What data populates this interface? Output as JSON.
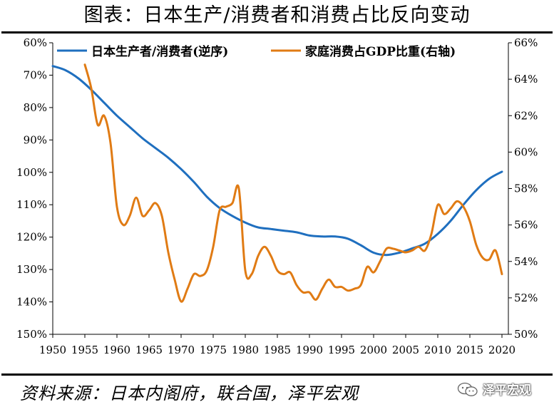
{
  "header": {
    "title": "图表：日本生产/消费者和消费占比反向变动"
  },
  "footer": {
    "source": "资料来源：日本内阁府，联合国，泽平宏观",
    "watermark": "泽平宏观"
  },
  "chart_data": {
    "type": "line",
    "title": "图表：日本生产/消费者和消费占比反向变动",
    "x_ticks": [
      1950,
      1955,
      1960,
      1965,
      1970,
      1975,
      1980,
      1985,
      1990,
      1995,
      2000,
      2005,
      2010,
      2015,
      2020
    ],
    "x_range": [
      1950,
      2021
    ],
    "left_axis": {
      "ticks": [
        "60%",
        "70%",
        "80%",
        "90%",
        "100%",
        "110%",
        "120%",
        "130%",
        "140%",
        "150%"
      ],
      "range": [
        60,
        150
      ],
      "inverted": true
    },
    "right_axis": {
      "ticks": [
        "66%",
        "64%",
        "62%",
        "60%",
        "58%",
        "56%",
        "54%",
        "52%",
        "50%"
      ],
      "range": [
        50,
        66
      ]
    },
    "grid": false,
    "legend_position": "top",
    "series": [
      {
        "name": "日本生产者/消费者(逆序)",
        "axis": "left",
        "color": "#1f6fbf",
        "points": [
          [
            1950,
            67.2
          ],
          [
            1952,
            68.5
          ],
          [
            1954,
            71
          ],
          [
            1956,
            74.5
          ],
          [
            1958,
            78.5
          ],
          [
            1960,
            82.5
          ],
          [
            1962,
            86
          ],
          [
            1964,
            89.5
          ],
          [
            1966,
            92.5
          ],
          [
            1968,
            95.5
          ],
          [
            1970,
            99
          ],
          [
            1972,
            103
          ],
          [
            1974,
            107.5
          ],
          [
            1976,
            111
          ],
          [
            1978,
            113.5
          ],
          [
            1980,
            115.5
          ],
          [
            1982,
            117
          ],
          [
            1984,
            117.5
          ],
          [
            1986,
            118
          ],
          [
            1988,
            118.5
          ],
          [
            1990,
            119.5
          ],
          [
            1992,
            119.8
          ],
          [
            1994,
            119.8
          ],
          [
            1996,
            120.5
          ],
          [
            1998,
            122.5
          ],
          [
            2000,
            124.8
          ],
          [
            2002,
            125.5
          ],
          [
            2004,
            124.8
          ],
          [
            2006,
            123.5
          ],
          [
            2008,
            122
          ],
          [
            2010,
            119
          ],
          [
            2012,
            115
          ],
          [
            2014,
            110
          ],
          [
            2016,
            105.5
          ],
          [
            2018,
            102
          ],
          [
            2020,
            99.8
          ]
        ]
      },
      {
        "name": "家庭消费占GDP比重(右轴)",
        "axis": "right",
        "color": "#e07b14",
        "points": [
          [
            1955,
            64.8
          ],
          [
            1956,
            63.5
          ],
          [
            1957,
            61.5
          ],
          [
            1958,
            62
          ],
          [
            1959,
            60.5
          ],
          [
            1960,
            57
          ],
          [
            1961,
            56
          ],
          [
            1962,
            56.5
          ],
          [
            1963,
            57.5
          ],
          [
            1964,
            56.5
          ],
          [
            1965,
            56.8
          ],
          [
            1966,
            57.2
          ],
          [
            1967,
            56.5
          ],
          [
            1968,
            54.5
          ],
          [
            1969,
            53
          ],
          [
            1970,
            51.8
          ],
          [
            1971,
            52.5
          ],
          [
            1972,
            53.3
          ],
          [
            1973,
            53.2
          ],
          [
            1974,
            53.5
          ],
          [
            1975,
            54.8
          ],
          [
            1976,
            56.8
          ],
          [
            1977,
            57
          ],
          [
            1978,
            57.2
          ],
          [
            1979,
            58
          ],
          [
            1980,
            53.5
          ],
          [
            1981,
            53.3
          ],
          [
            1982,
            54.3
          ],
          [
            1983,
            54.8
          ],
          [
            1984,
            54.3
          ],
          [
            1985,
            53.5
          ],
          [
            1986,
            53.3
          ],
          [
            1987,
            53.4
          ],
          [
            1988,
            52.7
          ],
          [
            1989,
            52.3
          ],
          [
            1990,
            52.3
          ],
          [
            1991,
            51.9
          ],
          [
            1992,
            52.5
          ],
          [
            1993,
            53
          ],
          [
            1994,
            52.6
          ],
          [
            1995,
            52.6
          ],
          [
            1996,
            52.4
          ],
          [
            1997,
            52.5
          ],
          [
            1998,
            52.7
          ],
          [
            1999,
            53.7
          ],
          [
            2000,
            53.4
          ],
          [
            2001,
            54
          ],
          [
            2002,
            54.7
          ],
          [
            2003,
            54.7
          ],
          [
            2004,
            54.6
          ],
          [
            2005,
            54.5
          ],
          [
            2006,
            54.6
          ],
          [
            2007,
            54.8
          ],
          [
            2008,
            54.6
          ],
          [
            2009,
            55.5
          ],
          [
            2010,
            57.1
          ],
          [
            2011,
            56.6
          ],
          [
            2012,
            56.9
          ],
          [
            2013,
            57.3
          ],
          [
            2014,
            57
          ],
          [
            2015,
            56.2
          ],
          [
            2016,
            54.9
          ],
          [
            2017,
            54.2
          ],
          [
            2018,
            54.1
          ],
          [
            2019,
            54.6
          ],
          [
            2020,
            53.3
          ]
        ]
      }
    ]
  }
}
